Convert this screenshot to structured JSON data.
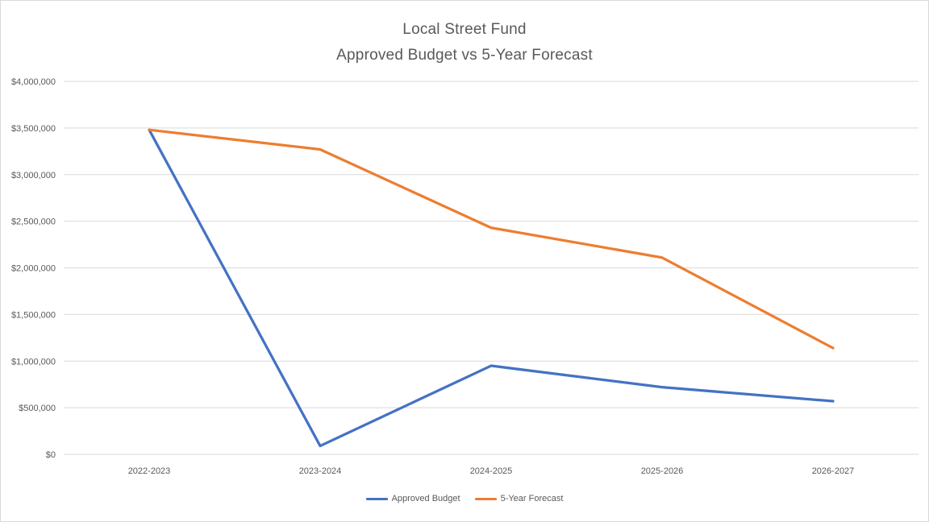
{
  "chart_data": {
    "type": "line",
    "title": "Local Street Fund",
    "subtitle": "Approved Budget vs 5-Year Forecast",
    "categories": [
      "2022-2023",
      "2023-2024",
      "2024-2025",
      "2025-2026",
      "2026-2027"
    ],
    "series": [
      {
        "name": "Approved Budget",
        "color": "#4472C4",
        "values": [
          3480000,
          90000,
          950000,
          720000,
          570000
        ]
      },
      {
        "name": "5-Year Forecast",
        "color": "#ED7D31",
        "values": [
          3480000,
          3270000,
          2430000,
          2110000,
          1140000
        ]
      }
    ],
    "ylim": [
      0,
      4000000
    ],
    "ytick_step": 500000,
    "ytick_labels": [
      "$0",
      "$500,000",
      "$1,000,000",
      "$1,500,000",
      "$2,000,000",
      "$2,500,000",
      "$3,000,000",
      "$3,500,000",
      "$4,000,000"
    ],
    "grid": true,
    "legend_position": "bottom",
    "gridline_color": "#D9D9D9",
    "text_color": "#595959"
  }
}
